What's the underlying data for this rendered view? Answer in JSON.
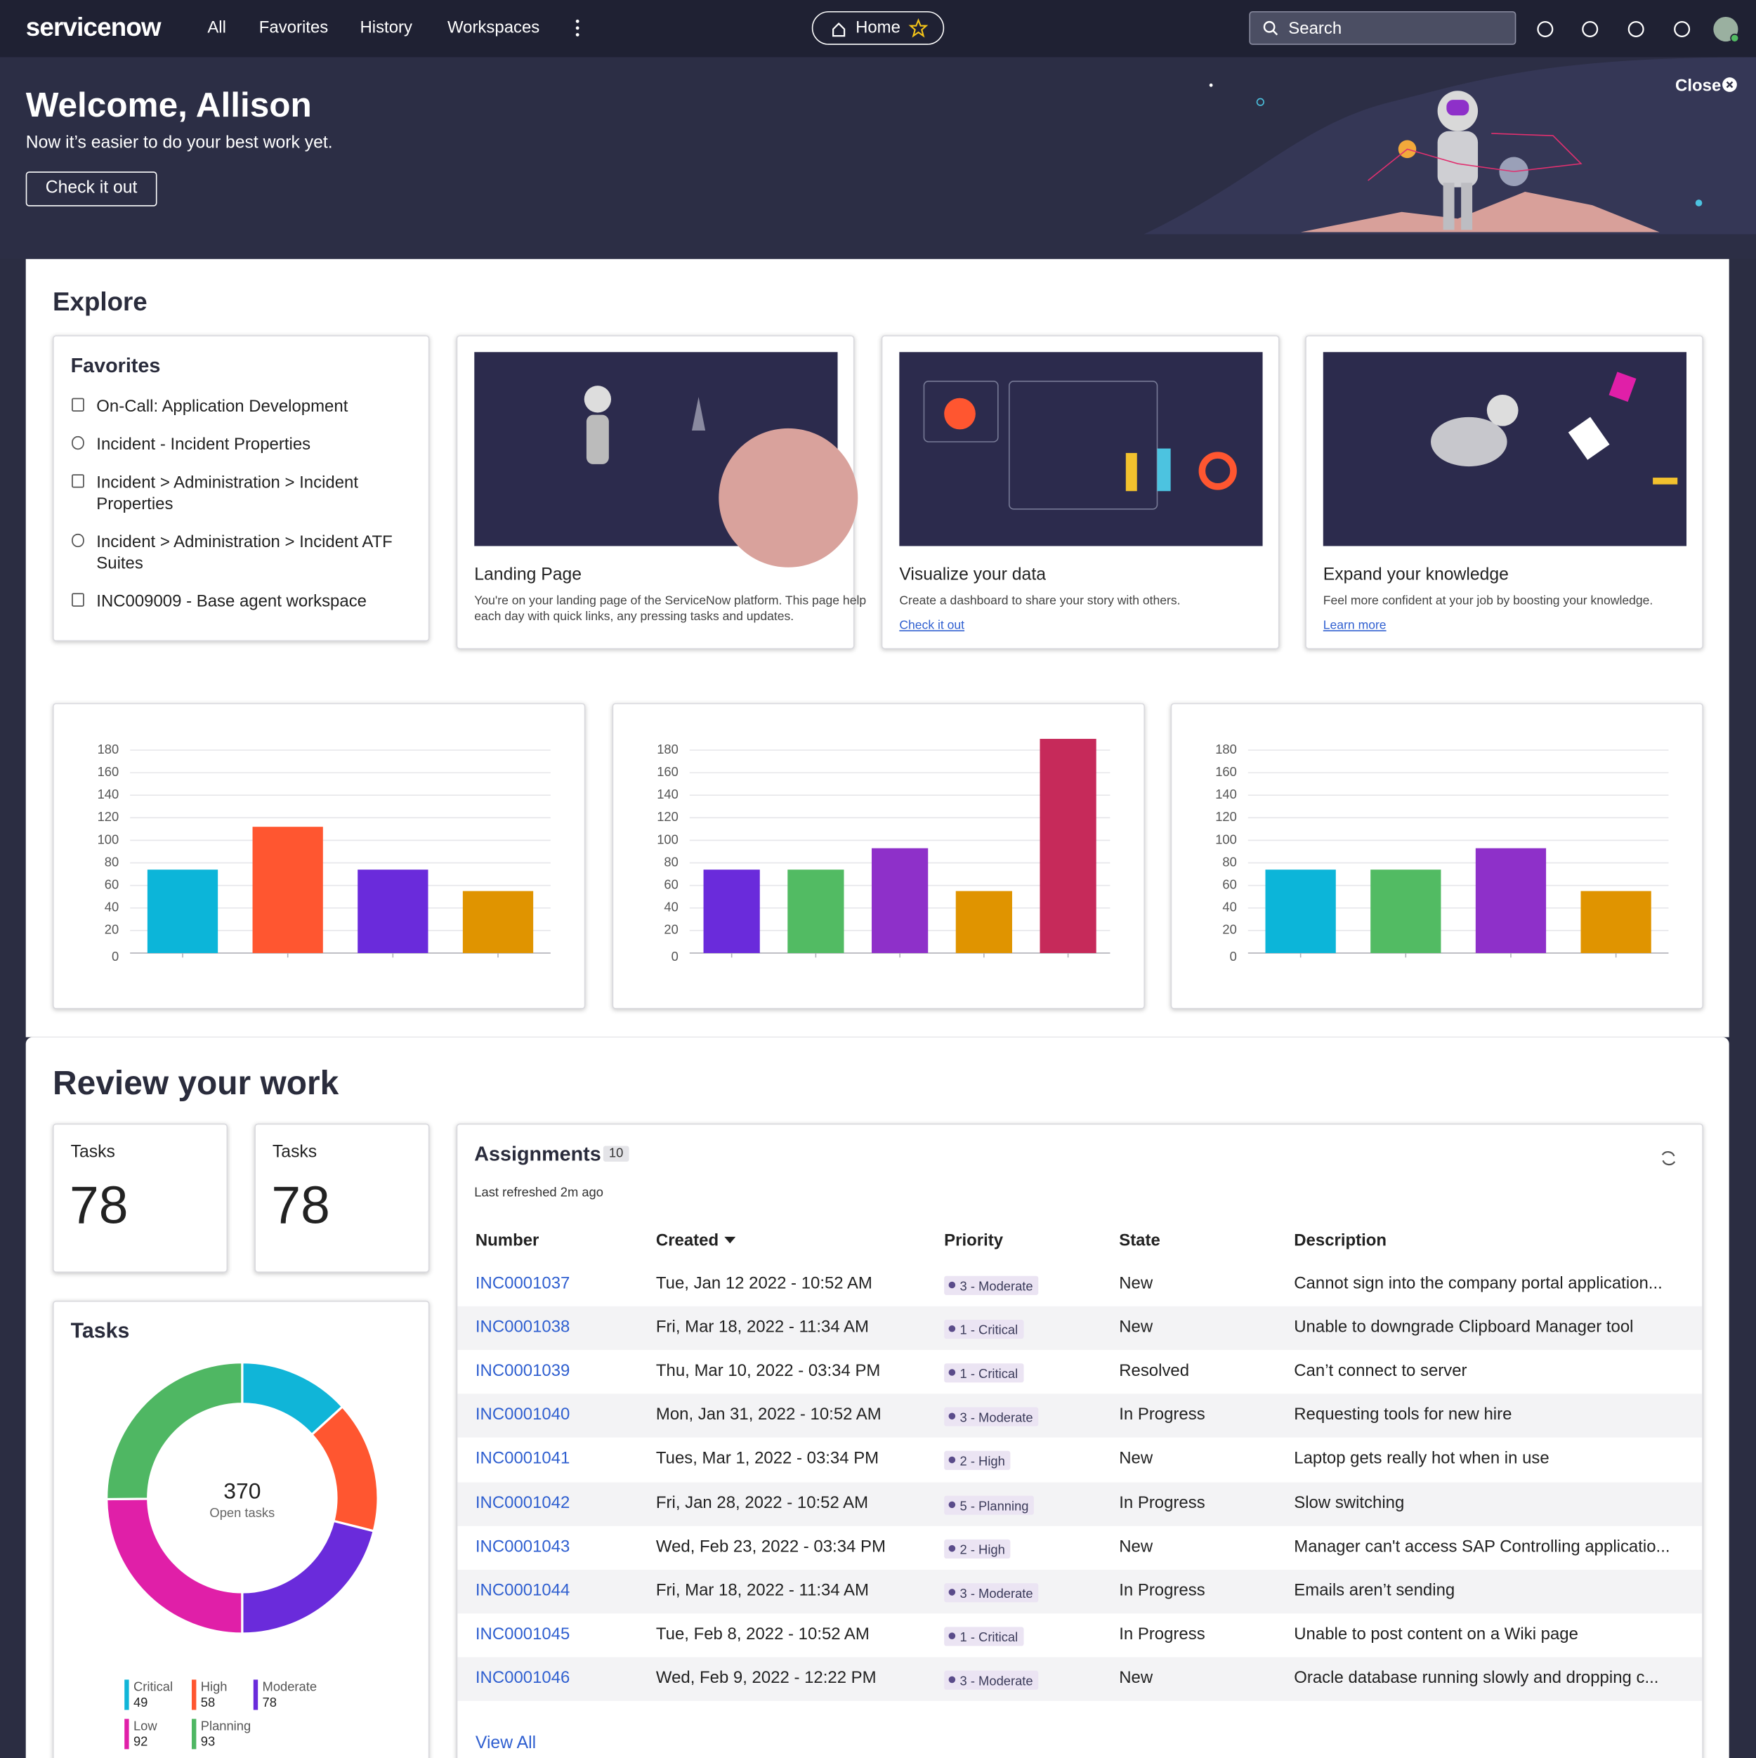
{
  "nav": {
    "logo": "servicenow",
    "items": [
      "All",
      "Favorites",
      "History",
      "Workspaces"
    ],
    "home": "Home",
    "search": "Search"
  },
  "banner": {
    "title": "Welcome, Allison",
    "subtitle": "Now it’s easier to do your best work yet.",
    "button": "Check it out",
    "close": "Close"
  },
  "explore": {
    "title": "Explore",
    "favorites": {
      "title": "Favorites",
      "items": [
        "On-Call: Application Development",
        "Incident - Incident Properties",
        "Incident > Administration > Incident Properties",
        "Incident > Administration > Incident ATF Suites",
        "INC009009 - Base agent workspace"
      ]
    },
    "cards": [
      {
        "title": "Landing Page",
        "lines": [
          "You're on your landing page of the ServiceNow platform. This page help",
          "each day with quick links, any pressing tasks and updates."
        ]
      },
      {
        "title": "Visualize your data",
        "lines": [
          "Create a dashboard to share your story with others."
        ],
        "link": "Check it out"
      },
      {
        "title": "Expand your knowledge",
        "lines": [
          "Feel more confident at your job by boosting your knowledge."
        ],
        "link": "Learn more"
      }
    ]
  },
  "review": {
    "title": "Review your work",
    "stats": [
      {
        "label": "Tasks",
        "value": 78
      },
      {
        "label": "Tasks",
        "value": 78
      }
    ],
    "assignments": {
      "title": "Assignments",
      "count": 10,
      "refreshed": "Last refreshed 2m ago",
      "columns": [
        "Number",
        "Created",
        "Priority",
        "State",
        "Description"
      ],
      "rows": [
        [
          "INC0001037",
          "Tue, Jan 12 2022 - 10:52 AM",
          "3 - Moderate",
          "New",
          "Cannot sign into the company portal application..."
        ],
        [
          "INC0001038",
          "Fri, Mar 18, 2022 - 11:34 AM",
          "1 - Critical",
          "New",
          "Unable to downgrade Clipboard Manager tool"
        ],
        [
          "INC0001039",
          "Thu, Mar 10, 2022 - 03:34 PM",
          "1 - Critical",
          "Resolved",
          "Can’t connect to server"
        ],
        [
          "INC0001040",
          "Mon, Jan 31, 2022 - 10:52 AM",
          "3 - Moderate",
          "In Progress",
          "Requesting tools for new hire"
        ],
        [
          "INC0001041",
          "Tues, Mar 1, 2022 - 03:34 PM",
          "2 - High",
          "New",
          "Laptop gets really hot when in use"
        ],
        [
          "INC0001042",
          "Fri, Jan 28, 2022 - 10:52 AM",
          "5 - Planning",
          "In Progress",
          "Slow switching"
        ],
        [
          "INC0001043",
          "Wed, Feb 23, 2022 - 03:34 PM",
          "2 - High",
          "New",
          "Manager can't access SAP Controlling applicatio..."
        ],
        [
          "INC0001044",
          "Fri, Mar 18, 2022 - 11:34 AM",
          "3 - Moderate",
          "In Progress",
          "Emails aren’t sending"
        ],
        [
          "INC0001045",
          "Tue, Feb 8, 2022 - 10:52 AM",
          "1 - Critical",
          "In Progress",
          "Unable to post content on a Wiki page"
        ],
        [
          "INC0001046",
          "Wed, Feb 9, 2022 - 12:22 PM",
          "3 - Moderate",
          "New",
          "Oracle database running slowly and dropping c..."
        ]
      ],
      "view_all": "View All"
    }
  },
  "chart_data": [
    {
      "type": "bar",
      "categories": [
        null,
        null,
        null,
        null
      ],
      "values": [
        74,
        112,
        74,
        55
      ],
      "colors": [
        "#0cb5d9",
        "#ff5630",
        "#6a2bdb",
        "#e09400"
      ],
      "ylim": [
        0,
        180
      ],
      "yticks": [
        0,
        20,
        40,
        60,
        80,
        100,
        120,
        140,
        160,
        180
      ],
      "grid": true
    },
    {
      "type": "bar",
      "categories": [
        null,
        null,
        null,
        null,
        null
      ],
      "values": [
        74,
        74,
        93,
        55,
        190
      ],
      "colors": [
        "#6a2bdb",
        "#52bb63",
        "#8e30c9",
        "#e09400",
        "#c62a5a"
      ],
      "ylim": [
        0,
        180
      ],
      "yticks": [
        0,
        20,
        40,
        60,
        80,
        100,
        120,
        140,
        160,
        180
      ],
      "grid": true
    },
    {
      "type": "bar",
      "categories": [
        null,
        null,
        null,
        null
      ],
      "values": [
        74,
        74,
        93,
        55
      ],
      "colors": [
        "#0cb5d9",
        "#52bb63",
        "#8e30c9",
        "#e09400"
      ],
      "ylim": [
        0,
        180
      ],
      "yticks": [
        0,
        20,
        40,
        60,
        80,
        100,
        120,
        140,
        160,
        180
      ],
      "grid": true
    },
    {
      "type": "pie",
      "title": "Tasks",
      "categories": [
        "Critical",
        "High",
        "Moderate",
        "Low",
        "Planning"
      ],
      "values": [
        49,
        58,
        78,
        92,
        93
      ],
      "colors": [
        "#10b5d8",
        "#ff5630",
        "#6a2bdb",
        "#e01fa8",
        "#4fb763"
      ],
      "center_value": 370,
      "center_label": "Open tasks",
      "donut": true
    }
  ]
}
